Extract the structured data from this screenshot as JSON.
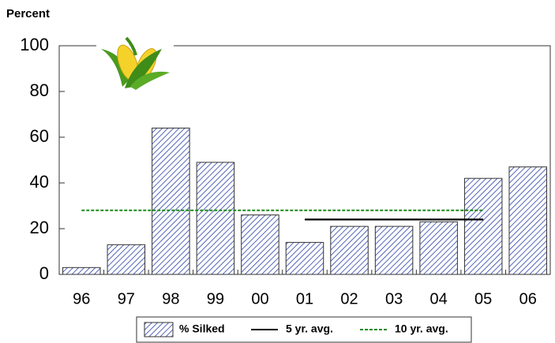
{
  "chart_data": {
    "type": "bar",
    "title": "Percent",
    "categories": [
      "96",
      "97",
      "98",
      "99",
      "00",
      "01",
      "02",
      "03",
      "04",
      "05",
      "06"
    ],
    "series": [
      {
        "name": "% Silked",
        "type": "bar",
        "color": "#2a3fa8",
        "values": [
          3,
          13,
          64,
          49,
          26,
          14,
          21,
          21,
          23,
          42,
          47
        ]
      },
      {
        "name": "5 yr. avg.",
        "type": "line",
        "color": "#000000",
        "dash": false,
        "values": [
          null,
          null,
          null,
          null,
          null,
          24,
          24,
          24,
          24,
          24,
          null
        ]
      },
      {
        "name": "10 yr. avg.",
        "type": "line",
        "color": "#1a8a1a",
        "dash": true,
        "values": [
          28,
          28,
          28,
          28,
          28,
          28,
          28,
          28,
          28,
          28,
          null
        ]
      }
    ],
    "ylim": [
      0,
      100
    ],
    "yticks": [
      0,
      20,
      40,
      60,
      80,
      100
    ],
    "grid": false
  }
}
